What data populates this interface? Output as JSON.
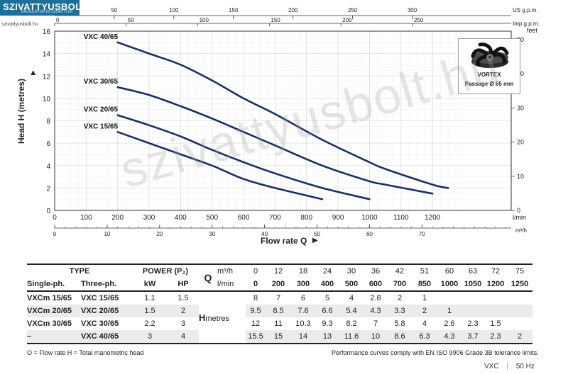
{
  "brand": {
    "name": "SZIVATTYUSBOLT.HU",
    "sub": "KALKULÁTOR ÉS SZIVATTYÚK",
    "url": "szivattyusbolt.hu"
  },
  "watermark": "szivattyusbolt.hu",
  "chart_data": {
    "type": "line",
    "ylabel": "Head H (metres)",
    "xlabel": "Flow rate Q",
    "x_unit": "l/min",
    "xlim": [
      0,
      1450
    ],
    "ylim": [
      0,
      16
    ],
    "grid": true,
    "yticks": [
      0,
      2,
      4,
      6,
      8,
      10,
      12,
      14,
      16
    ],
    "xticks_lmin": [
      0,
      100,
      200,
      300,
      400,
      500,
      600,
      700,
      800,
      900,
      1000,
      1100,
      1200
    ],
    "feet_ticks": [
      0,
      10,
      20,
      30,
      40,
      50
    ],
    "feet_unit": "feet",
    "m3h_ticks": [
      0,
      10,
      20,
      30,
      40,
      50,
      60,
      70
    ],
    "m3h_unit": "m³/h",
    "usgpm_ticks": [
      50,
      100,
      150,
      200,
      250,
      300
    ],
    "usgpm_unit": "US g.p.m.",
    "impgpm_ticks": [
      0,
      50,
      100,
      150,
      200,
      250
    ],
    "impgpm_unit": "Imp g.p.m.",
    "series": [
      {
        "name": "VXC 40/65",
        "x": [
          200,
          300,
          400,
          500,
          600,
          700,
          850,
          1000,
          1050,
          1200,
          1250
        ],
        "y": [
          15,
          14,
          13,
          11.6,
          10,
          8.6,
          6.3,
          4.3,
          3.7,
          2.3,
          2
        ]
      },
      {
        "name": "VXC 30/65",
        "x": [
          200,
          300,
          400,
          500,
          600,
          700,
          850,
          1000,
          1050,
          1200
        ],
        "y": [
          11,
          10.3,
          9.3,
          8.2,
          7,
          5.8,
          4,
          2.6,
          2.3,
          1.5
        ]
      },
      {
        "name": "VXC 20/65",
        "x": [
          200,
          300,
          400,
          500,
          600,
          700,
          850,
          1000
        ],
        "y": [
          8.5,
          7.6,
          6.6,
          5.4,
          4.3,
          3.3,
          2,
          1
        ]
      },
      {
        "name": "VXC 15/65",
        "x": [
          200,
          300,
          400,
          500,
          600,
          700,
          850
        ],
        "y": [
          7,
          6,
          5,
          4,
          2.8,
          2,
          1
        ]
      }
    ]
  },
  "vortex": {
    "title": "VORTEX",
    "subtitle": "Passage Ø 65 mm"
  },
  "table": {
    "type_label": "TYPE",
    "power_label": "POWER (P₂)",
    "q_label": "Q",
    "single_ph": "Single-ph.",
    "three_ph": "Three-ph.",
    "kw": "kW",
    "hp": "HP",
    "m3h": "m³/h",
    "lmin": "l/min",
    "h_label": "H",
    "metres": "metres",
    "q_m3h": [
      "0",
      "12",
      "18",
      "24",
      "30",
      "36",
      "42",
      "51",
      "60",
      "63",
      "72",
      "75"
    ],
    "q_lmin": [
      "0",
      "200",
      "300",
      "400",
      "500",
      "600",
      "700",
      "850",
      "1000",
      "1050",
      "1200",
      "1250"
    ],
    "rows": [
      {
        "single": "VXCm 15/65",
        "three": "VXC 15/65",
        "kw": "1.1",
        "hp": "1.5",
        "h": [
          "8",
          "7",
          "6",
          "5",
          "4",
          "2.8",
          "2",
          "1",
          "",
          "",
          "",
          ""
        ]
      },
      {
        "single": "VXCm 20/65",
        "three": "VXC 20/65",
        "kw": "1.5",
        "hp": "2",
        "h": [
          "9.5",
          "8.5",
          "7.6",
          "6.6",
          "5.4",
          "4.3",
          "3.3",
          "2",
          "1",
          "",
          "",
          ""
        ]
      },
      {
        "single": "VXCm 30/65",
        "three": "VXC 30/65",
        "kw": "2.2",
        "hp": "3",
        "h": [
          "12",
          "11",
          "10.3",
          "9.3",
          "8.2",
          "7",
          "5.8",
          "4",
          "2.6",
          "2.3",
          "1.5",
          ""
        ]
      },
      {
        "single": "–",
        "three": "VXC 40/65",
        "kw": "3",
        "hp": "4",
        "h": [
          "15.5",
          "15",
          "14",
          "13",
          "11.6",
          "10",
          "8.6",
          "6.3",
          "4.3",
          "3.7",
          "2.3",
          "2"
        ]
      }
    ]
  },
  "legend_note": "O = Flow rate  H = Total manometric head",
  "compliance": "Performance curves comply with EN ISO 9906 Grade 3B tolerance limits.",
  "footer": {
    "model": "VXC",
    "sep": "|",
    "freq": "50 Hz"
  }
}
